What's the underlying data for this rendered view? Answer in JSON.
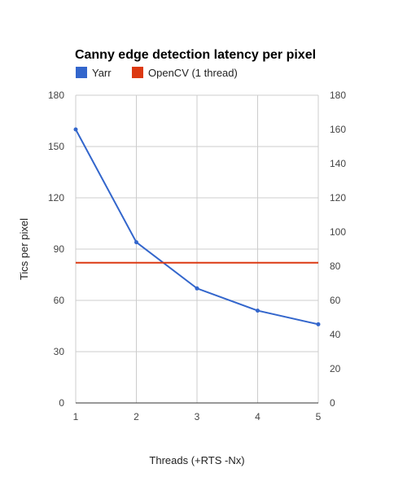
{
  "chart_data": {
    "type": "line",
    "title": "Canny edge detection latency per pixel",
    "xlabel": "Threads (+RTS -Nx)",
    "ylabel": "Tics per pixel",
    "x": [
      1,
      2,
      3,
      4,
      5
    ],
    "x_tick_labels": [
      "1",
      "2",
      "3",
      "4",
      "5"
    ],
    "xlim": [
      1,
      5
    ],
    "ylim_left": [
      0,
      180
    ],
    "y_ticks_left": [
      "0",
      "30",
      "60",
      "90",
      "120",
      "150",
      "180"
    ],
    "ylim_right": [
      0,
      180
    ],
    "y_ticks_right": [
      "0",
      "20",
      "40",
      "60",
      "80",
      "100",
      "120",
      "140",
      "160",
      "180"
    ],
    "grid": true,
    "legend_position": "top-left",
    "series": [
      {
        "name": "Yarr",
        "color": "#3366cc",
        "values": [
          160,
          94,
          67,
          54,
          46
        ],
        "markers": true
      },
      {
        "name": "OpenCV (1 thread)",
        "color": "#dc3912",
        "values": [
          82,
          82,
          82,
          82,
          82
        ],
        "markers": false
      }
    ]
  }
}
